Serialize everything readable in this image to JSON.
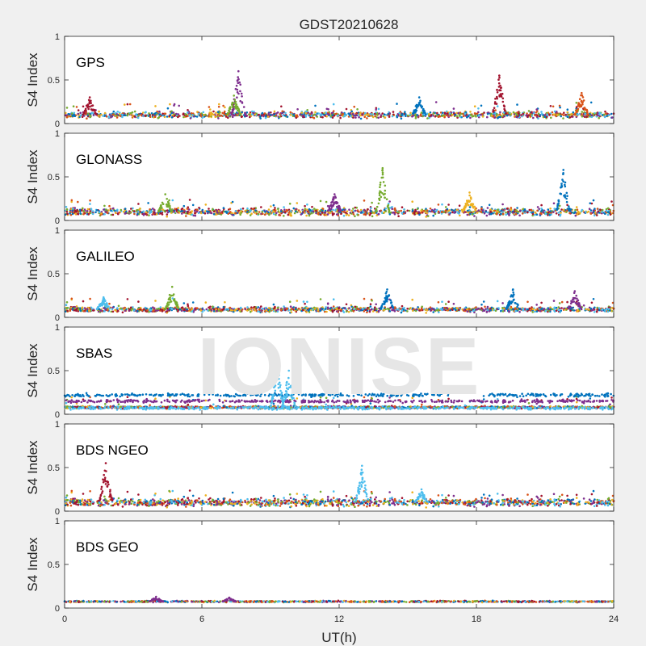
{
  "chart_data": {
    "type": "scatter",
    "title": "GDST20210628",
    "xlabel": "UT(h)",
    "watermark": "IONISE",
    "xlim": [
      0,
      24
    ],
    "xticks": [
      0,
      6,
      12,
      18,
      24
    ],
    "series_colors": [
      "#0072BD",
      "#D95319",
      "#EDB120",
      "#7E2F8E",
      "#77AC30",
      "#4DBEEE",
      "#A2142F"
    ],
    "panels": [
      {
        "label": "GPS",
        "ylabel": "S4 Index",
        "ylim": [
          0,
          1
        ],
        "yticks": [
          0,
          0.5,
          1
        ],
        "baseline": 0.1,
        "spread": 0.05,
        "spikes": [
          {
            "x": 7.6,
            "peak": 0.6,
            "color": 3
          },
          {
            "x": 19.0,
            "peak": 0.55,
            "color": 6
          },
          {
            "x": 22.6,
            "peak": 0.35,
            "color": 1
          },
          {
            "x": 7.4,
            "peak": 0.32,
            "color": 4
          },
          {
            "x": 1.1,
            "peak": 0.3,
            "color": 6
          },
          {
            "x": 15.5,
            "peak": 0.3,
            "color": 0
          }
        ]
      },
      {
        "label": "GLONASS",
        "ylabel": "S4 Index",
        "ylim": [
          0,
          1
        ],
        "yticks": [
          0,
          0.5,
          1
        ],
        "baseline": 0.1,
        "spread": 0.06,
        "spikes": [
          {
            "x": 13.9,
            "peak": 0.6,
            "color": 4
          },
          {
            "x": 21.8,
            "peak": 0.58,
            "color": 0
          },
          {
            "x": 4.4,
            "peak": 0.3,
            "color": 4
          },
          {
            "x": 17.7,
            "peak": 0.32,
            "color": 2
          },
          {
            "x": 11.8,
            "peak": 0.3,
            "color": 3
          }
        ]
      },
      {
        "label": "GALILEO",
        "ylabel": "S4 Index",
        "ylim": [
          0,
          1
        ],
        "yticks": [
          0,
          0.5,
          1
        ],
        "baseline": 0.09,
        "spread": 0.04,
        "spikes": [
          {
            "x": 4.7,
            "peak": 0.35,
            "color": 4
          },
          {
            "x": 14.1,
            "peak": 0.32,
            "color": 0
          },
          {
            "x": 19.6,
            "peak": 0.32,
            "color": 0
          },
          {
            "x": 22.3,
            "peak": 0.3,
            "color": 3
          },
          {
            "x": 1.7,
            "peak": 0.23,
            "color": 5
          }
        ]
      },
      {
        "label": "SBAS",
        "ylabel": "S4 Index",
        "ylim": [
          0,
          1
        ],
        "yticks": [
          0,
          0.5,
          1
        ],
        "baseline": 0.08,
        "spread": 0.02,
        "bands": [
          {
            "y": 0.22,
            "color": 0,
            "gap": [
              16.8,
              18.3
            ]
          },
          {
            "y": 0.15,
            "color": 3,
            "gap": []
          },
          {
            "y": 0.07,
            "color": 5,
            "gap": []
          }
        ],
        "spikes": [
          {
            "x": 9.3,
            "peak": 0.6,
            "color": 5
          },
          {
            "x": 9.8,
            "peak": 0.5,
            "color": 5
          }
        ]
      },
      {
        "label": "BDS NGEO",
        "ylabel": "S4 Index",
        "ylim": [
          0,
          1
        ],
        "yticks": [
          0,
          0.5,
          1
        ],
        "baseline": 0.1,
        "spread": 0.06,
        "spikes": [
          {
            "x": 1.8,
            "peak": 0.55,
            "color": 6
          },
          {
            "x": 13.0,
            "peak": 0.52,
            "color": 5
          },
          {
            "x": 15.6,
            "peak": 0.25,
            "color": 5
          }
        ]
      },
      {
        "label": "BDS GEO",
        "ylabel": "S4 Index",
        "ylim": [
          0,
          1
        ],
        "yticks": [
          0,
          0.5,
          1
        ],
        "baseline": 0.075,
        "spread": 0.012,
        "geo": true,
        "spikes": [
          {
            "x": 4.0,
            "peak": 0.13,
            "color": 3
          },
          {
            "x": 7.2,
            "peak": 0.12,
            "color": 3
          }
        ]
      }
    ]
  }
}
